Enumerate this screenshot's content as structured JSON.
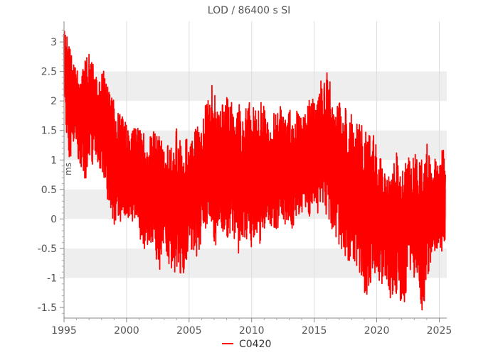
{
  "chart_data": {
    "type": "line",
    "title": "LOD / 86400 s SI",
    "ylabel": "ms",
    "xlabel": "",
    "xlim": [
      1995.0,
      2025.6
    ],
    "ylim": [
      -1.68,
      3.35
    ],
    "x_ticks": [
      "1995",
      "2000",
      "2005",
      "2010",
      "2015",
      "2020",
      "2025"
    ],
    "y_ticks": [
      "-1.5",
      "-1",
      "-0.5",
      "0",
      "0.5",
      "1",
      "1.5",
      "2",
      "2.5",
      "3"
    ],
    "grid": true,
    "legend_position": "bottom",
    "series": [
      {
        "name": "C0420",
        "color": "#ff0000",
        "envelope_step_years": 0.25,
        "envelope_start_year": 1995.0,
        "envelope_upper": [
          3.3,
          3.2,
          2.9,
          2.7,
          2.6,
          2.4,
          2.6,
          2.8,
          2.95,
          2.7,
          2.5,
          2.2,
          2.6,
          2.5,
          2.3,
          2.1,
          2.0,
          1.8,
          1.9,
          1.7,
          1.6,
          1.5,
          1.8,
          1.6,
          1.5,
          1.7,
          1.5,
          1.4,
          1.6,
          1.5,
          1.4,
          1.5,
          1.5,
          1.4,
          1.3,
          1.4,
          1.55,
          1.4,
          1.3,
          1.5,
          1.45,
          1.4,
          1.6,
          1.6,
          1.7,
          1.9,
          2.1,
          2.3,
          2.25,
          2.0,
          2.1,
          2.0,
          2.2,
          2.1,
          1.9,
          1.8,
          2.0,
          1.9,
          1.9,
          2.1,
          2.0,
          1.9,
          1.8,
          2.0,
          1.9,
          1.8,
          2.0,
          1.9,
          1.9,
          2.0,
          1.8,
          1.7,
          1.9,
          1.8,
          1.8,
          1.9,
          1.7,
          1.8,
          2.0,
          2.1,
          2.0,
          2.2,
          2.4,
          2.3,
          2.5,
          2.4,
          2.1,
          2.0,
          2.2,
          2.0,
          1.9,
          1.7,
          1.8,
          1.6,
          1.7,
          1.6,
          1.7,
          1.6,
          1.4,
          1.6,
          1.2,
          1.1,
          1.0,
          0.9,
          0.8,
          0.9,
          1.3,
          0.9,
          0.8,
          1.0,
          1.1,
          0.9,
          1.2,
          1.0,
          1.1,
          0.9,
          1.3,
          1.0,
          1.1,
          1.0,
          0.9,
          1.3,
          1.0
        ],
        "envelope_lower": [
          2.1,
          1.2,
          0.9,
          1.2,
          1.3,
          0.8,
          0.7,
          0.6,
          1.0,
          0.9,
          1.1,
          0.9,
          0.8,
          0.5,
          0.3,
          0.1,
          -0.1,
          0.0,
          -0.1,
          0.1,
          0.0,
          -0.05,
          -0.1,
          0.0,
          -0.4,
          -0.3,
          -0.7,
          -0.5,
          -0.4,
          -0.6,
          -0.8,
          -0.9,
          -0.7,
          -0.6,
          -1.0,
          -0.8,
          -1.05,
          -0.9,
          -1.0,
          -0.8,
          -0.6,
          -0.5,
          -0.6,
          -0.7,
          -0.3,
          -0.3,
          -0.2,
          -0.1,
          -0.4,
          -0.5,
          -0.3,
          -0.2,
          -0.4,
          -0.5,
          -0.3,
          -0.5,
          -0.7,
          -0.6,
          -0.4,
          -0.5,
          -0.6,
          -0.3,
          -0.4,
          -0.5,
          -0.2,
          -0.3,
          -0.1,
          -0.3,
          -0.2,
          -0.1,
          -0.2,
          -0.1,
          0.0,
          -0.2,
          -0.1,
          0.0,
          0.1,
          0.0,
          -0.1,
          0.2,
          0.1,
          0.0,
          0.3,
          0.2,
          0.0,
          -0.1,
          -0.2,
          -0.4,
          -0.6,
          -0.5,
          -0.7,
          -0.9,
          -0.6,
          -0.8,
          -1.0,
          -1.2,
          -1.3,
          -1.4,
          -1.1,
          -0.9,
          -1.2,
          -1.3,
          -1.0,
          -1.2,
          -1.3,
          -1.5,
          -1.4,
          -1.2,
          -1.6,
          -1.4,
          -1.0,
          -0.9,
          -1.1,
          -1.2,
          -1.5,
          -1.65,
          -1.1,
          -0.8,
          -0.7,
          -0.6,
          -0.5,
          -0.6,
          -0.6
        ]
      }
    ]
  }
}
